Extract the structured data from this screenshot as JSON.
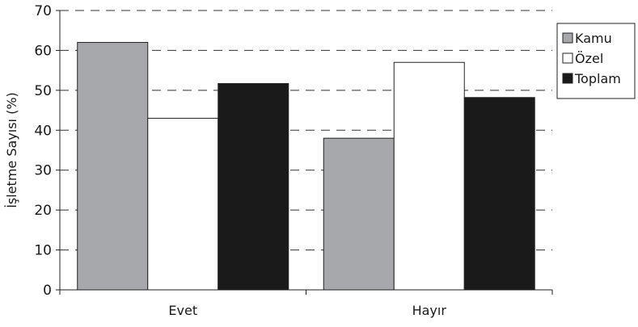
{
  "chart_data": {
    "type": "bar",
    "title": "",
    "xlabel": "",
    "ylabel": "İşletme Sayısı (%)",
    "categories": [
      "Evet",
      "Hayır"
    ],
    "ylim": [
      0,
      70
    ],
    "yticks": [
      0,
      10,
      20,
      30,
      40,
      50,
      60,
      70
    ],
    "grid": "dashed horizontal",
    "legend_position": "right",
    "series": [
      {
        "name": "Kamu",
        "values": [
          62,
          38
        ],
        "color": "#a6a8ab"
      },
      {
        "name": "Özel",
        "values": [
          43,
          57
        ],
        "color": "#ffffff"
      },
      {
        "name": "Toplam",
        "values": [
          51.7,
          48.2
        ],
        "color": "#1a1a1a"
      }
    ]
  }
}
